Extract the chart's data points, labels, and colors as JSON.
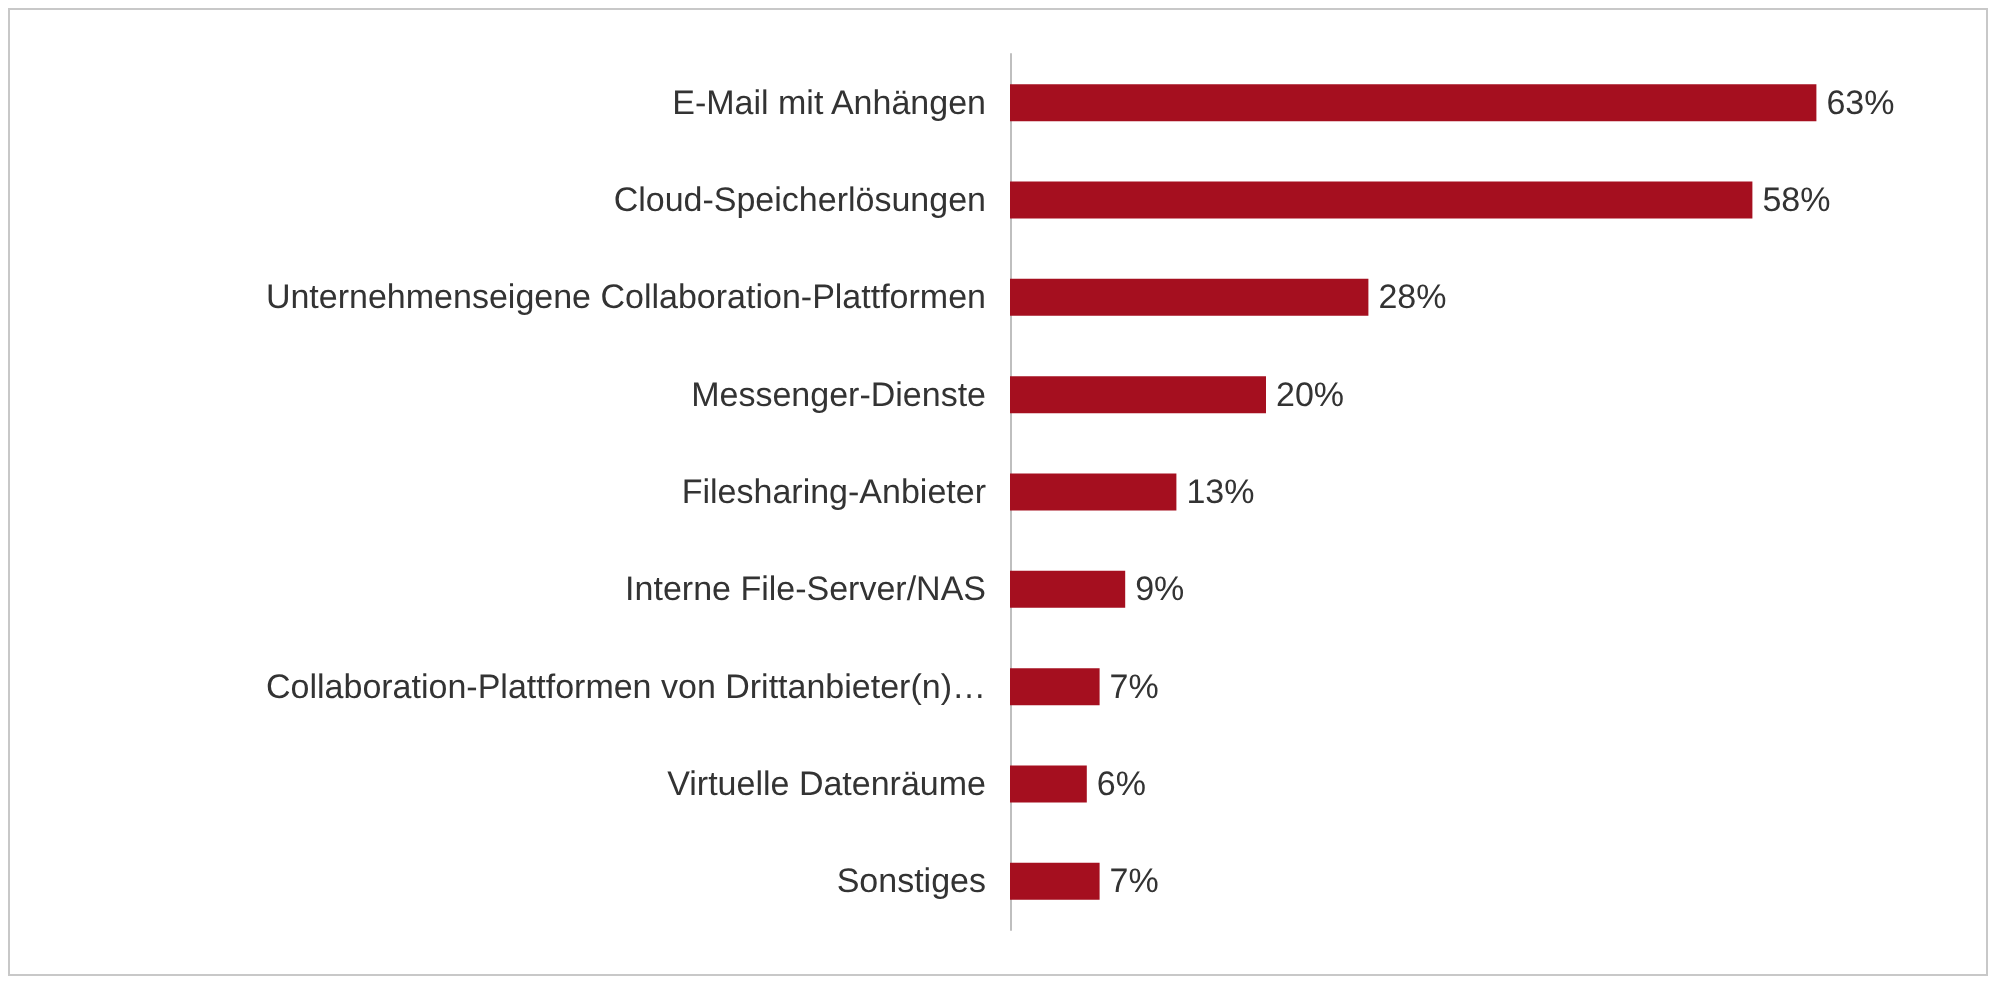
{
  "chart_data": {
    "type": "bar",
    "orientation": "horizontal",
    "categories": [
      "E-Mail mit Anhängen",
      "Cloud-Speicherlösungen",
      "Unternehmenseigene Collaboration-Plattformen",
      "Messenger-Dienste",
      "Filesharing-Anbieter",
      "Interne File-Server/NAS",
      "Collaboration-Plattformen von Drittanbieter(n)…",
      "Virtuelle Datenräume",
      "Sonstiges"
    ],
    "values": [
      63,
      58,
      28,
      20,
      13,
      9,
      7,
      6,
      7
    ],
    "value_labels": [
      "63%",
      "58%",
      "28%",
      "20%",
      "13%",
      "9%",
      "7%",
      "6%",
      "7%"
    ],
    "color": "#a50f1f",
    "grid": false
  }
}
